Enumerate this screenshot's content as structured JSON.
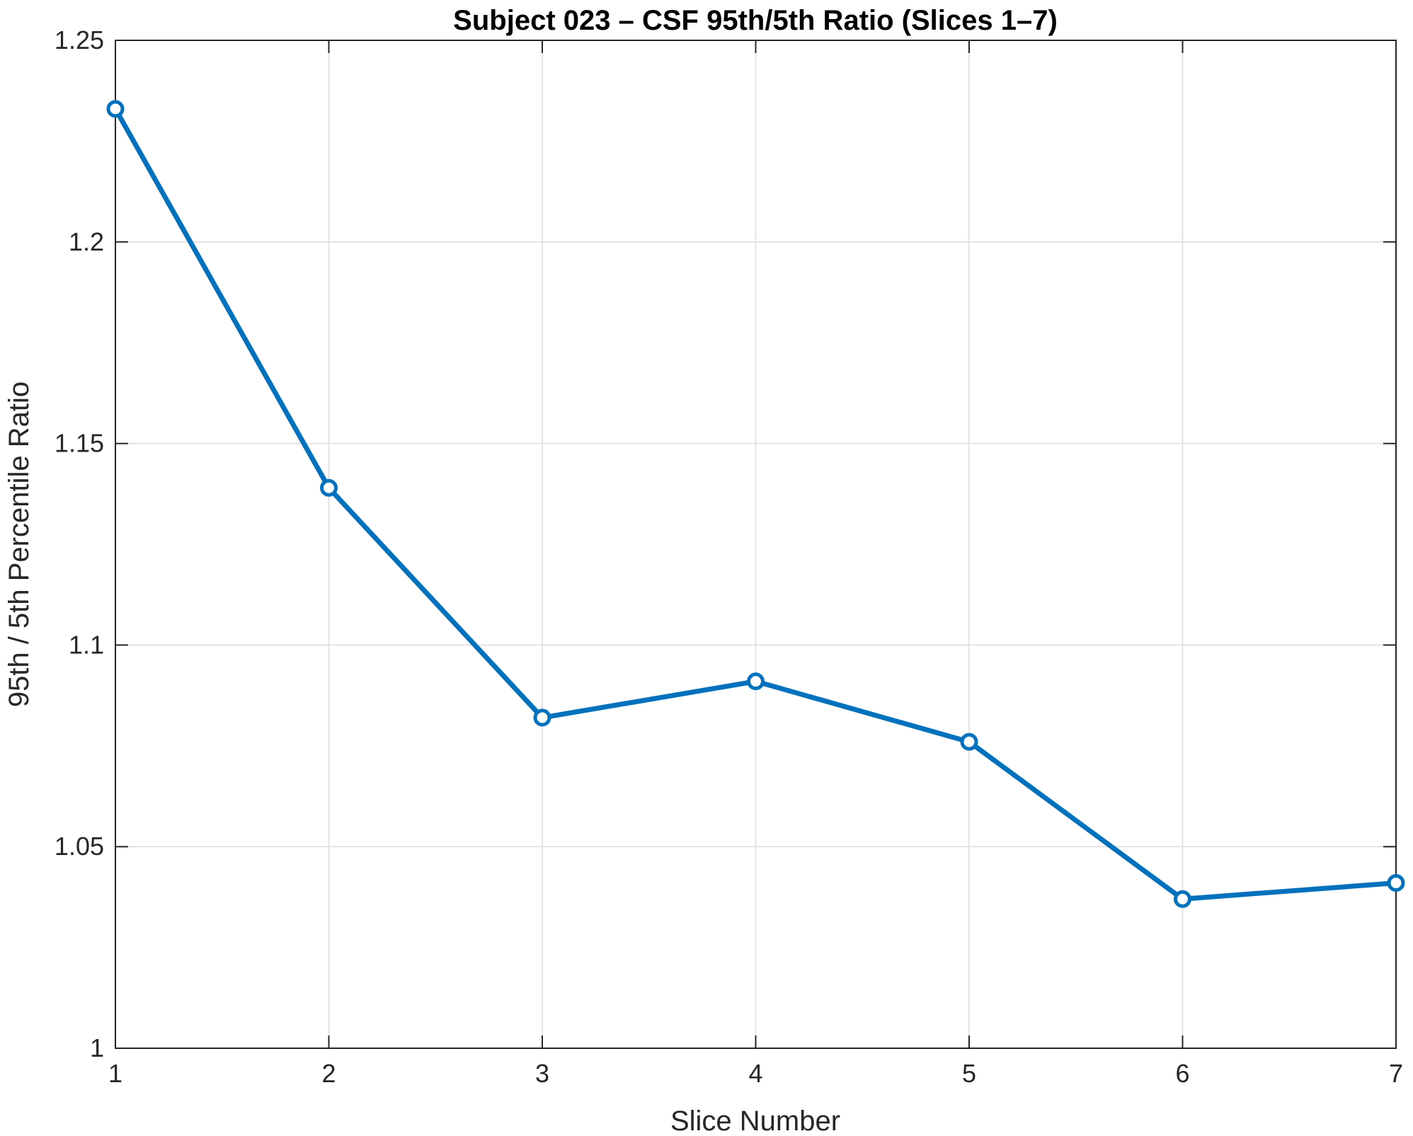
{
  "chart_data": {
    "type": "line",
    "title": "Subject 023 – CSF 95th/5th Ratio (Slices 1–7)",
    "xlabel": "Slice Number",
    "ylabel": "95th / 5th Percentile Ratio",
    "xlim": [
      1,
      7
    ],
    "ylim": [
      1,
      1.25
    ],
    "xticks": [
      1,
      2,
      3,
      4,
      5,
      6,
      7
    ],
    "xtick_labels": [
      "1",
      "2",
      "3",
      "4",
      "5",
      "6",
      "7"
    ],
    "yticks": [
      1,
      1.05,
      1.1,
      1.15,
      1.2,
      1.25
    ],
    "ytick_labels": [
      "1",
      "1.05",
      "1.1",
      "1.15",
      "1.2",
      "1.25"
    ],
    "grid": true,
    "series": [
      {
        "x": [
          1,
          2,
          3,
          4,
          5,
          6,
          7
        ],
        "values": [
          1.233,
          1.139,
          1.082,
          1.091,
          1.076,
          1.037,
          1.041
        ],
        "color": "#0072BD",
        "marker": "circle"
      }
    ]
  }
}
